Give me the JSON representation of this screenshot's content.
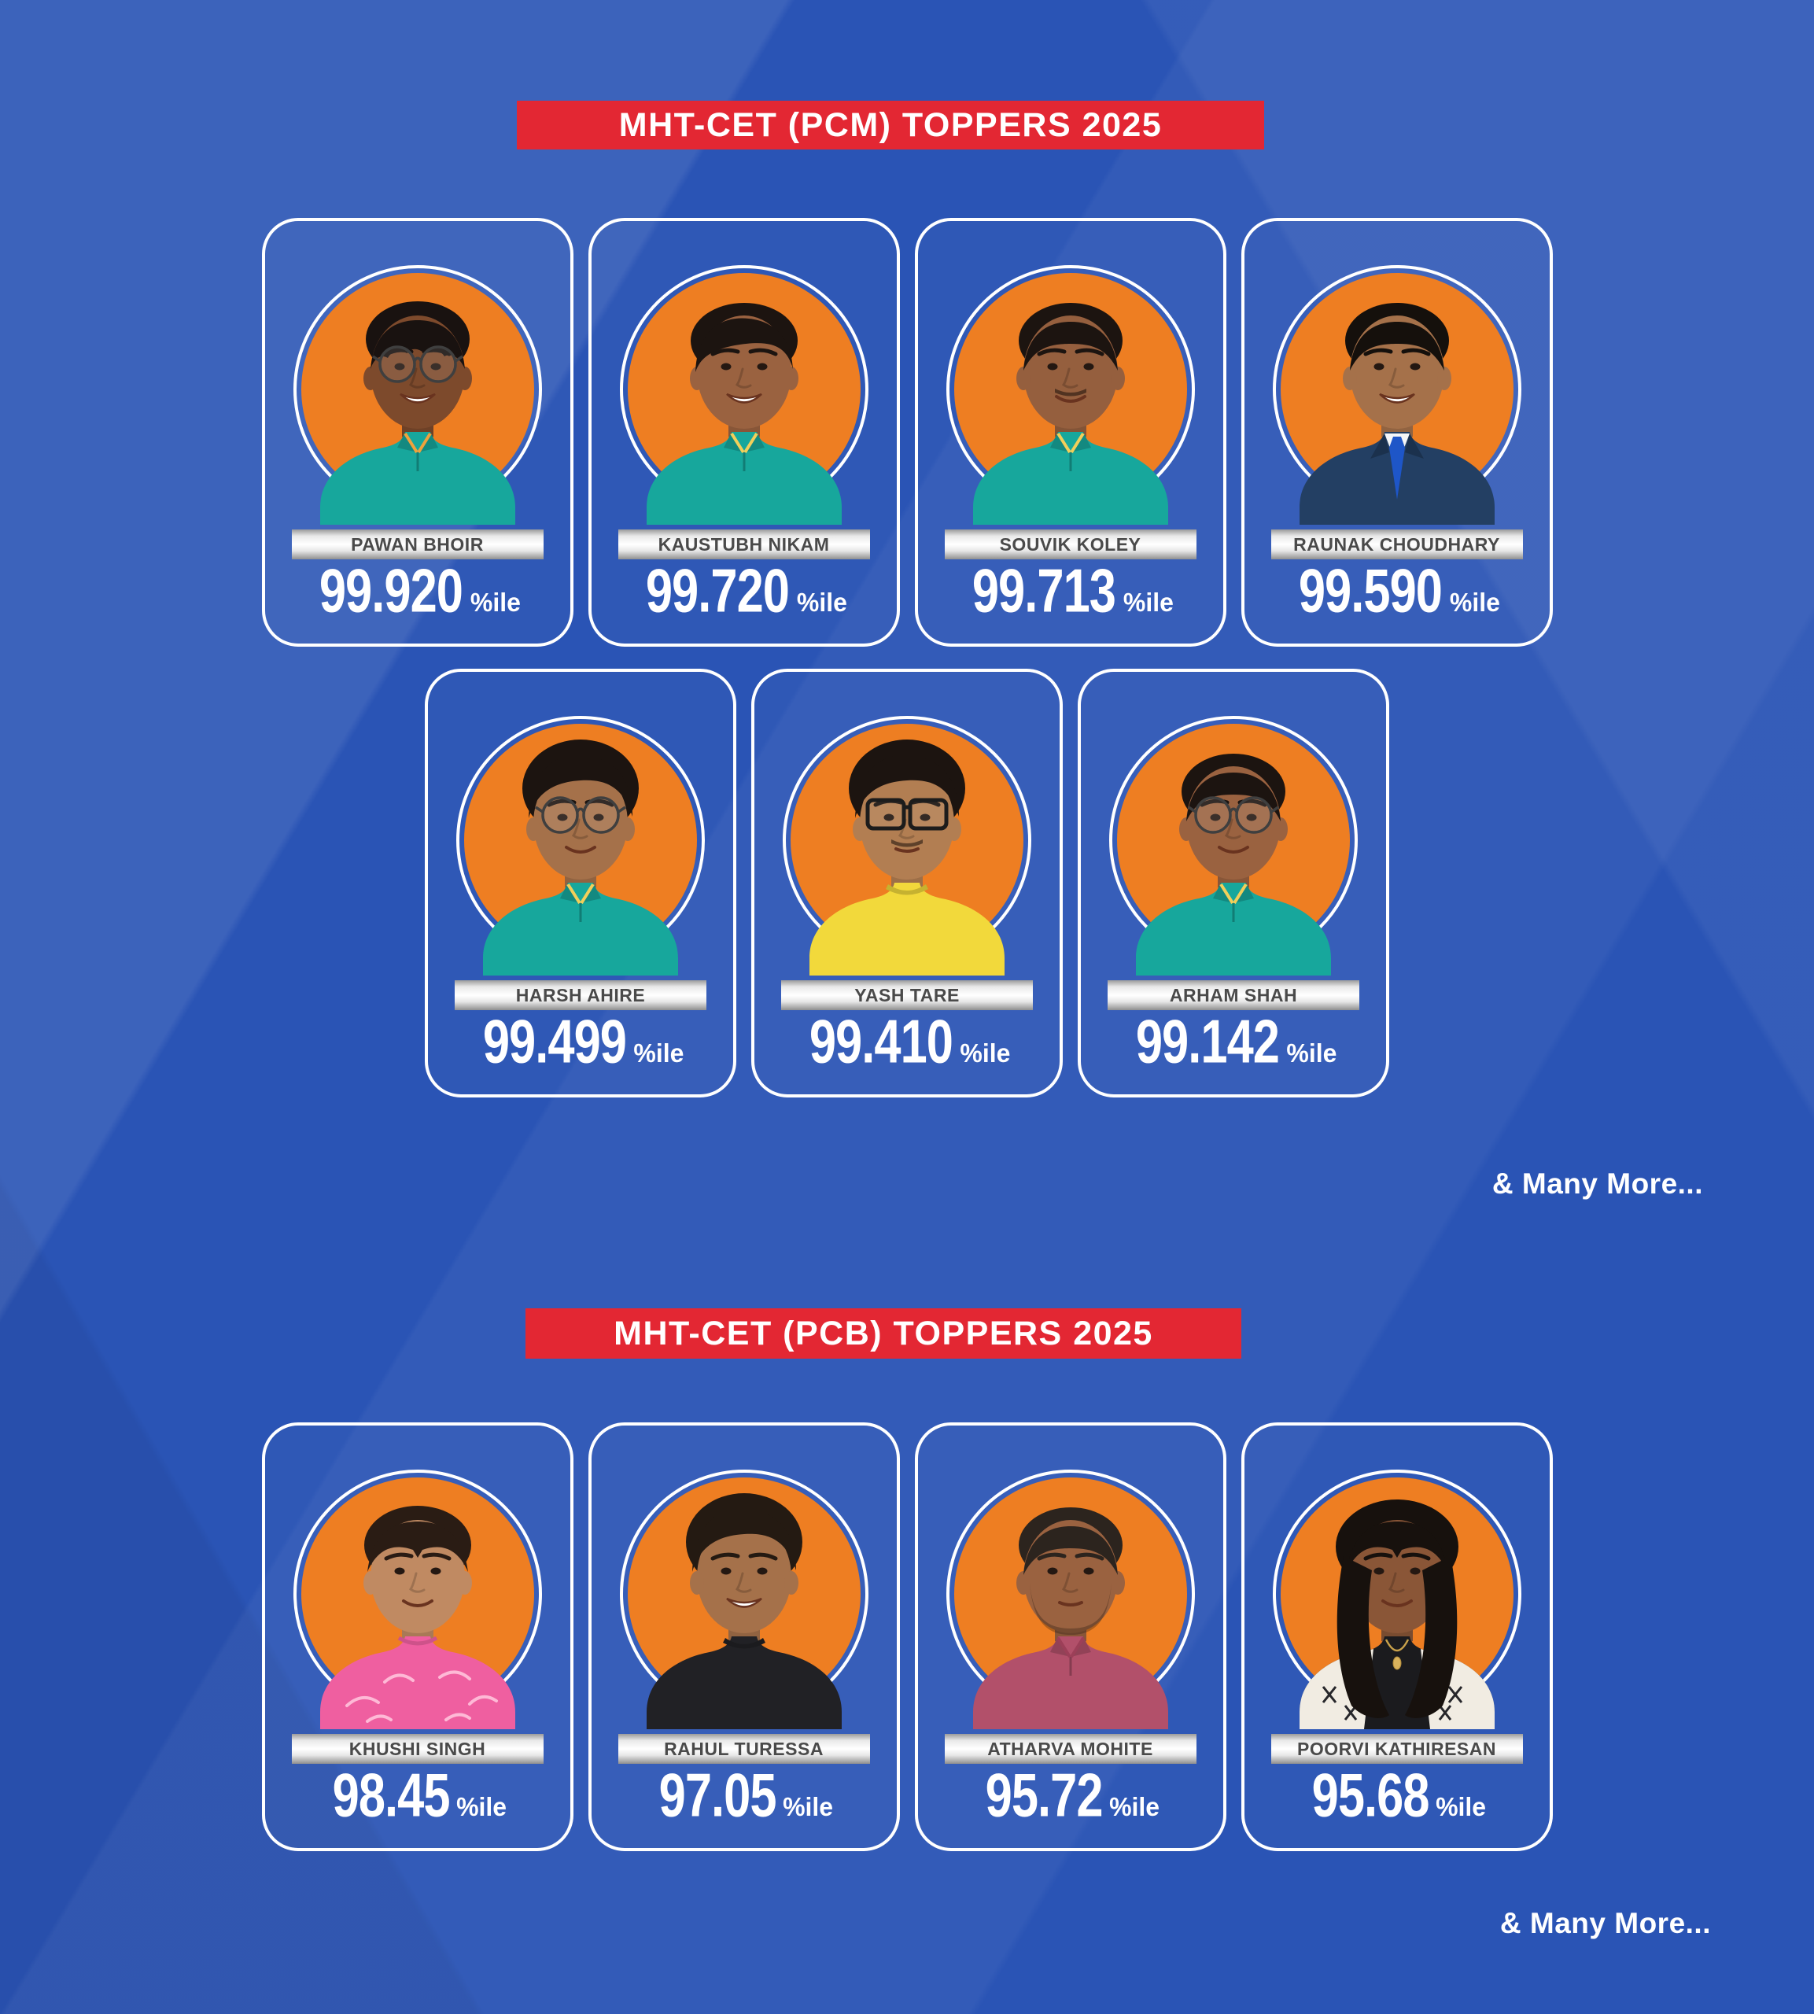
{
  "poster": {
    "colors": {
      "background": "#2a54b5",
      "banner_red": "#e32733",
      "photo_circle_orange": "#ee7e22",
      "card_border": "#ffffff",
      "name_plate_silver": "#e9e9e9",
      "name_text": "#4a4a4a",
      "percentile_text": "#ffffff"
    },
    "sections": [
      {
        "title": "MHT-CET (PCM) TOPPERS 2025",
        "many_more": "& Many More...",
        "rows": [
          [
            {
              "name": "PAWAN BHOIR",
              "percentile": "99.920",
              "suffix": "%ile",
              "avatar": {
                "bg": "#ee7e22",
                "skin": "#7d4a2c",
                "hair_color": "#191210",
                "hair": "curly",
                "glasses": "round",
                "smile": "open",
                "outfit": "polo",
                "shirt": "#17a79c",
                "trim": "#f0a23c",
                "extras": []
              }
            },
            {
              "name": "KAUSTUBH NIKAM",
              "percentile": "99.720",
              "suffix": "%ile",
              "avatar": {
                "bg": "#ee7e22",
                "skin": "#9a6240",
                "hair_color": "#1c1410",
                "hair": "swept",
                "glasses": "none",
                "smile": "open",
                "outfit": "polo",
                "shirt": "#17a79c",
                "trim": "#f2cf5a",
                "extras": []
              }
            },
            {
              "name": "SOUVIK KOLEY",
              "percentile": "99.713",
              "suffix": "%ile",
              "avatar": {
                "bg": "#ee7e22",
                "skin": "#955f3e",
                "hair_color": "#1c1410",
                "hair": "short",
                "glasses": "none",
                "smile": "soft",
                "outfit": "polo",
                "shirt": "#17a79c",
                "trim": "#f2cf5a",
                "extras": [
                  "mustache"
                ]
              }
            },
            {
              "name": "RAUNAK CHOUDHARY",
              "percentile": "99.590",
              "suffix": "%ile",
              "avatar": {
                "bg": "#ee7e22",
                "skin": "#a5714a",
                "hair_color": "#15100c",
                "hair": "short",
                "glasses": "none",
                "smile": "open",
                "outfit": "suit",
                "shirt": "#233f63",
                "tie": "#1e56c8",
                "extras": []
              }
            }
          ],
          [
            {
              "name": "HARSH AHIRE",
              "percentile": "99.499",
              "suffix": "%ile",
              "avatar": {
                "bg": "#ee7e22",
                "skin": "#a5714a",
                "hair_color": "#1c1410",
                "hair": "fluffy",
                "glasses": "round",
                "smile": "soft",
                "outfit": "polo",
                "shirt": "#17a79c",
                "trim": "#f2cf5a",
                "extras": []
              }
            },
            {
              "name": "YASH TARE",
              "percentile": "99.410",
              "suffix": "%ile",
              "avatar": {
                "bg": "#ee7e22",
                "skin": "#b27e52",
                "hair_color": "#1c1410",
                "hair": "fluffy",
                "glasses": "rect",
                "smile": "neutral",
                "outfit": "tee",
                "shirt": "#f2d93b",
                "extras": [
                  "mustache"
                ]
              }
            },
            {
              "name": "ARHAM SHAH",
              "percentile": "99.142",
              "suffix": "%ile",
              "avatar": {
                "bg": "#ee7e22",
                "skin": "#9a6240",
                "hair_color": "#1c1410",
                "hair": "short",
                "glasses": "round",
                "smile": "soft",
                "outfit": "polo",
                "shirt": "#17a79c",
                "trim": "#f2cf5a",
                "extras": []
              }
            }
          ]
        ]
      },
      {
        "title": "MHT-CET (PCB) TOPPERS 2025",
        "many_more": "& Many More...",
        "rows": [
          [
            {
              "name": "KHUSHI SINGH",
              "percentile": "98.45",
              "suffix": "%ile",
              "avatar": {
                "bg": "#ee7e22",
                "skin": "#c08a62",
                "hair_color": "#2a1c14",
                "hair": "pulled",
                "glasses": "none",
                "smile": "soft",
                "outfit": "scarf",
                "shirt": "#ef5fa0",
                "pattern": "#ffc3dc",
                "extras": []
              }
            },
            {
              "name": "RAHUL TURESSA",
              "percentile": "97.05",
              "suffix": "%ile",
              "avatar": {
                "bg": "#ee7e22",
                "skin": "#a5714a",
                "hair_color": "#241a12",
                "hair": "fluffy",
                "glasses": "none",
                "smile": "open",
                "outfit": "tee",
                "shirt": "#212125",
                "extras": []
              }
            },
            {
              "name": "ATHARVA MOHITE",
              "percentile": "95.72",
              "suffix": "%ile",
              "avatar": {
                "bg": "#ee7e22",
                "skin": "#9a6240",
                "hair_color": "#2c241e",
                "hair": "short",
                "glasses": "none",
                "smile": "neutral",
                "outfit": "polo",
                "shirt": "#b2506a",
                "trim": "#9c3f58",
                "extras": [
                  "stubble"
                ]
              }
            },
            {
              "name": "POORVI KATHIRESAN",
              "percentile": "95.68",
              "suffix": "%ile",
              "avatar": {
                "bg": "#ee7e22",
                "skin": "#8a5637",
                "hair_color": "#17110d",
                "hair": "long",
                "glasses": "none",
                "smile": "soft",
                "outfit": "jacket",
                "shirt": "#1b1b1e",
                "jacket": "#f1ece2",
                "extras": [
                  "necklace"
                ]
              }
            }
          ]
        ]
      }
    ]
  }
}
